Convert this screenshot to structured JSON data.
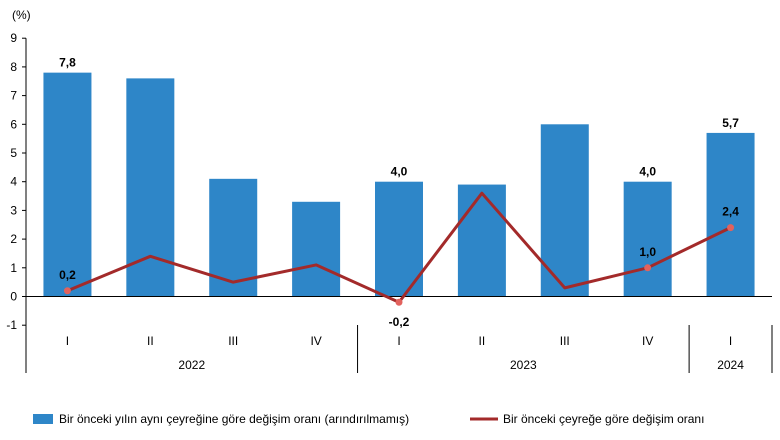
{
  "chart_data": {
    "type": "bar+line",
    "unit_label": "(%)",
    "yaxis_ticks": [
      "-1",
      "0",
      "1",
      "2",
      "3",
      "4",
      "5",
      "6",
      "7",
      "8",
      "9"
    ],
    "ylim": [
      -1,
      9
    ],
    "categories": [
      "I",
      "II",
      "III",
      "IV",
      "I",
      "II",
      "III",
      "IV",
      "I"
    ],
    "groups": [
      {
        "label": "2022",
        "count": 4
      },
      {
        "label": "2023",
        "count": 4
      },
      {
        "label": "2024",
        "count": 1
      }
    ],
    "series": [
      {
        "name": "Bir önceki yılın aynı çeyreğine göre değişim oranı (arındırılmamış)",
        "type": "bar",
        "color": "#2e86c8",
        "values": [
          7.8,
          7.6,
          4.1,
          3.3,
          4.0,
          3.9,
          6.0,
          4.0,
          5.7
        ],
        "data_labels": [
          "7,8",
          "",
          "",
          "",
          "4,0",
          "",
          "",
          "4,0",
          "5,7"
        ]
      },
      {
        "name": "Bir önceki çeyreğe göre değişim oranı",
        "type": "line",
        "color": "#a32a2a",
        "marker_color": "#e2625d",
        "values": [
          0.2,
          1.4,
          0.5,
          1.1,
          -0.2,
          3.6,
          0.3,
          1.0,
          2.4
        ],
        "data_labels": [
          "0,2",
          "",
          "",
          "",
          "-0,2",
          "",
          "",
          "1,0",
          "2,4"
        ]
      }
    ],
    "grid": false,
    "legend_position": "bottom"
  }
}
